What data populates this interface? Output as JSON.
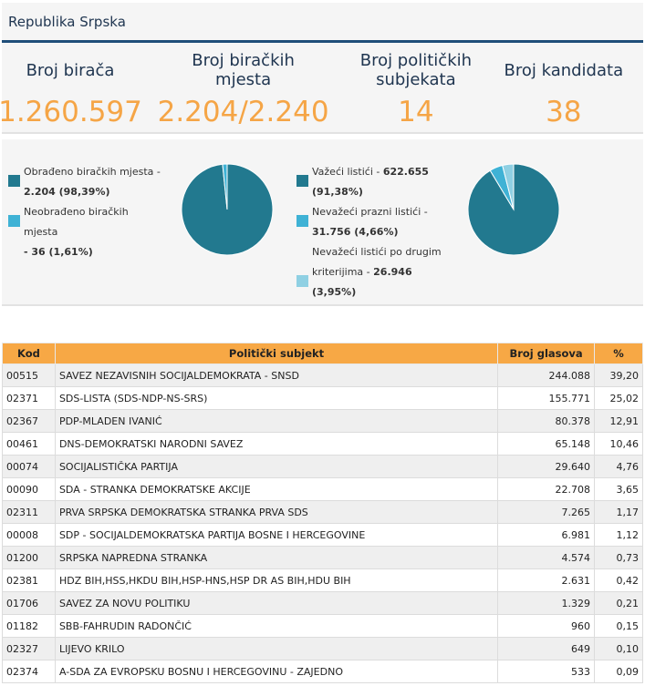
{
  "header": {
    "title": "Republika Srpska"
  },
  "stats": [
    {
      "label": "Broj birača",
      "value": "1.260.597"
    },
    {
      "label": "Broj biračkih mjesta",
      "value": "2.204/2.240"
    },
    {
      "label": "Broj političkih subjekata",
      "value": "14"
    },
    {
      "label": "Broj kandidata",
      "value": "38"
    }
  ],
  "colors": {
    "dark": "#22798f",
    "mid": "#3fb2d5",
    "light": "#8fd0e3",
    "accent": "#f5a546"
  },
  "polling": {
    "items": [
      {
        "label": "Obrađeno biračkih mjesta -",
        "value": "2.204 (98,39%)",
        "percent": 98.39
      },
      {
        "label": "Neobrađeno biračkih mjesta",
        "value": "- 36 (1,61%)",
        "percent": 1.61
      }
    ]
  },
  "ballots": {
    "items": [
      {
        "label": "Važeći listići -",
        "value": "622.655",
        "value2": "(91,38%)",
        "percent": 91.38
      },
      {
        "label": "Nevažeći prazni listići -",
        "value": "31.756 (4,66%)",
        "percent": 4.66
      },
      {
        "label": "Nevažeći listići po drugim",
        "label2": "kriterijima -",
        "value": "26.946",
        "value2": "(3,95%)",
        "percent": 3.95
      }
    ]
  },
  "table": {
    "headers": {
      "kod": "Kod",
      "subjekt": "Politički subjekt",
      "glasova": "Broj glasova",
      "pct": "%"
    },
    "rows": [
      {
        "kod": "00515",
        "subjekt": "SAVEZ NEZAVISNIH SOCIJALDEMOKRATA - SNSD",
        "glasova": "244.088",
        "pct": "39,20"
      },
      {
        "kod": "02371",
        "subjekt": "SDS-LISTA (SDS-NDP-NS-SRS)",
        "glasova": "155.771",
        "pct": "25,02"
      },
      {
        "kod": "02367",
        "subjekt": "PDP-MLADEN IVANIĆ",
        "glasova": "80.378",
        "pct": "12,91"
      },
      {
        "kod": "00461",
        "subjekt": "DNS-DEMOKRATSKI NARODNI SAVEZ",
        "glasova": "65.148",
        "pct": "10,46"
      },
      {
        "kod": "00074",
        "subjekt": "SOCIJALISTIČKA PARTIJA",
        "glasova": "29.640",
        "pct": "4,76"
      },
      {
        "kod": "00090",
        "subjekt": "SDA - STRANKA DEMOKRATSKE AKCIJE",
        "glasova": "22.708",
        "pct": "3,65"
      },
      {
        "kod": "02311",
        "subjekt": "PRVA SRPSKA DEMOKRATSKA STRANKA PRVA SDS",
        "glasova": "7.265",
        "pct": "1,17"
      },
      {
        "kod": "00008",
        "subjekt": "SDP - SOCIJALDEMOKRATSKA PARTIJA BOSNE I HERCEGOVINE",
        "glasova": "6.981",
        "pct": "1,12"
      },
      {
        "kod": "01200",
        "subjekt": "SRPSKA NAPREDNA STRANKA",
        "glasova": "4.574",
        "pct": "0,73"
      },
      {
        "kod": "02381",
        "subjekt": "HDZ BIH,HSS,HKDU BIH,HSP-HNS,HSP DR AS BIH,HDU BIH",
        "glasova": "2.631",
        "pct": "0,42"
      },
      {
        "kod": "01706",
        "subjekt": "SAVEZ ZA NOVU POLITIKU",
        "glasova": "1.329",
        "pct": "0,21"
      },
      {
        "kod": "01182",
        "subjekt": "SBB-FAHRUDIN RADONČIĆ",
        "glasova": "960",
        "pct": "0,15"
      },
      {
        "kod": "02327",
        "subjekt": "LIJEVO KRILO",
        "glasova": "649",
        "pct": "0,10"
      },
      {
        "kod": "02374",
        "subjekt": "A-SDA ZA EVROPSKU BOSNU I HERCEGOVINU - ZAJEDNO",
        "glasova": "533",
        "pct": "0,09"
      }
    ]
  }
}
